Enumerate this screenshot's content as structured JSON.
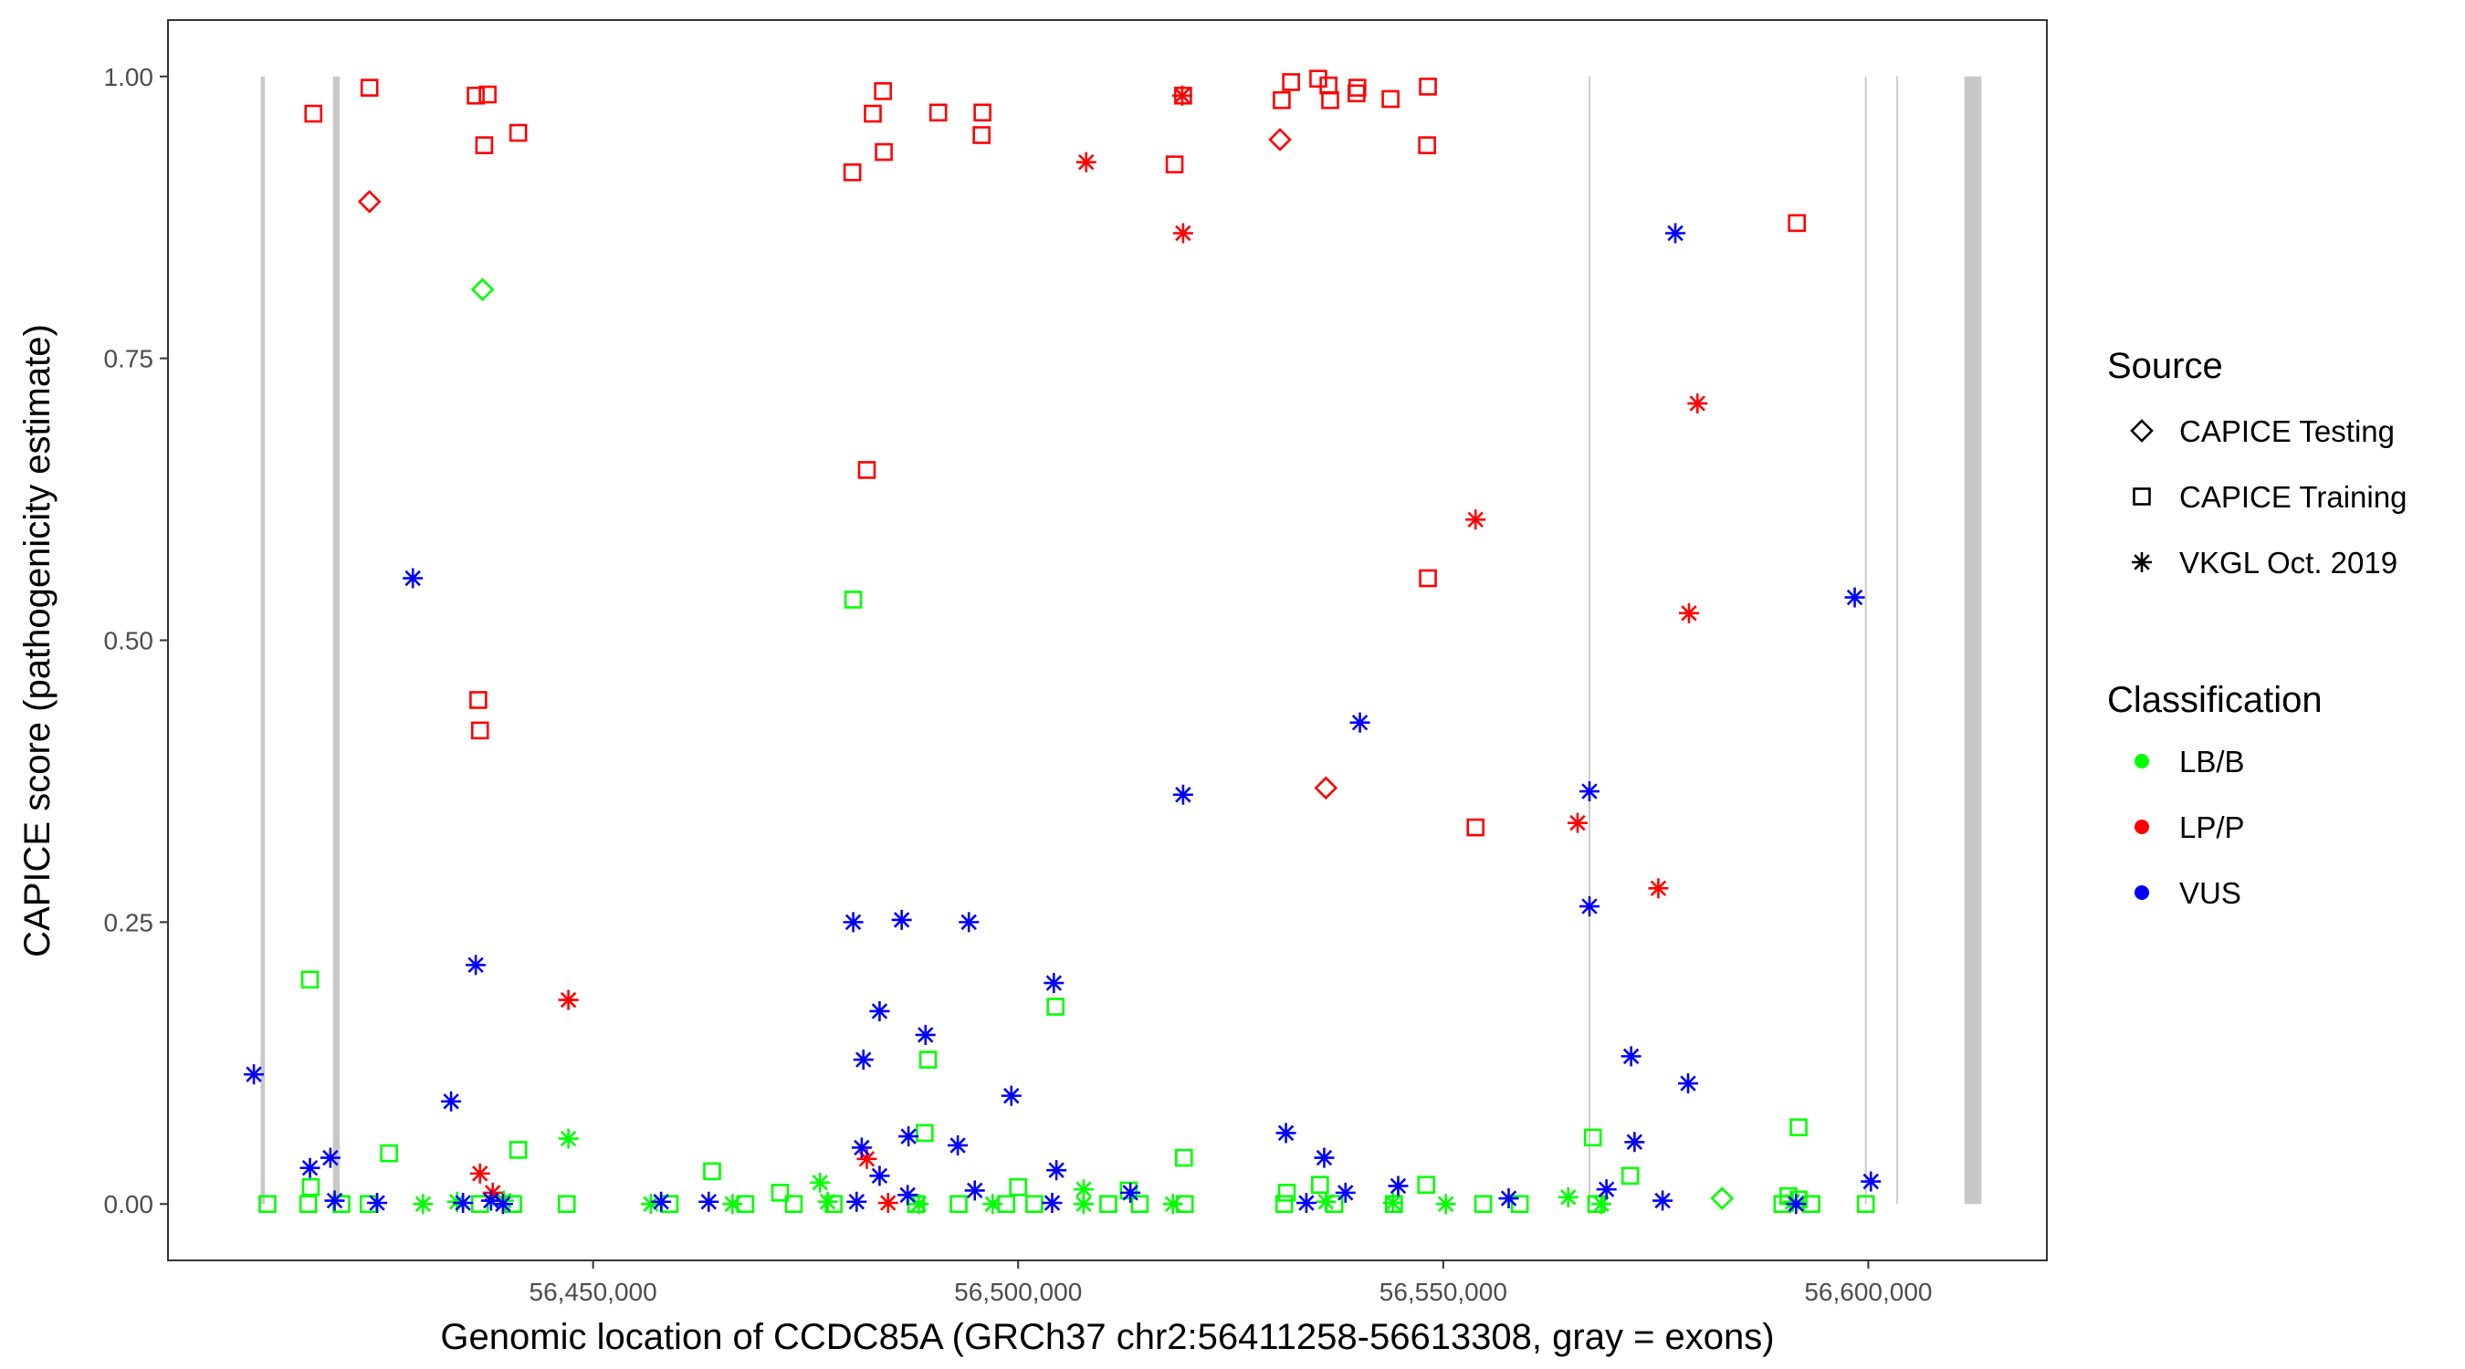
{
  "chart_data": {
    "type": "scatter",
    "title": "",
    "xlabel": "Genomic location of CCDC85A (GRCh37 chr2:56411258-56613308, gray = exons)",
    "ylabel": "CAPICE score (pathogenicity estimate)",
    "xlim": [
      56400000,
      56621000
    ],
    "ylim": [
      -0.05,
      1.05
    ],
    "x_ticks": [
      56450000,
      56500000,
      56550000,
      56600000
    ],
    "x_tick_labels": [
      "56,450,000",
      "56,500,000",
      "56,550,000",
      "56,600,000"
    ],
    "y_ticks": [
      0.0,
      0.25,
      0.5,
      0.75,
      1.0
    ],
    "y_tick_labels": [
      "0.00",
      "0.25",
      "0.50",
      "0.75",
      "1.00"
    ],
    "grid": false,
    "legend_position": "right",
    "exons": [
      {
        "start": 56410900,
        "end": 56411400
      },
      {
        "start": 56419400,
        "end": 56420200
      },
      {
        "start": 56567100,
        "end": 56567300
      },
      {
        "start": 56599600,
        "end": 56599800
      },
      {
        "start": 56603300,
        "end": 56603500
      },
      {
        "start": 56611300,
        "end": 56613308
      }
    ],
    "legend": {
      "source_title": "Source",
      "source_items": [
        {
          "label": "CAPICE Testing",
          "shape": "diamond"
        },
        {
          "label": "CAPICE Training",
          "shape": "square"
        },
        {
          "label": "VKGL Oct. 2019",
          "shape": "asterisk"
        }
      ],
      "class_title": "Classification",
      "class_items": [
        {
          "label": "LB/B",
          "color": "#00ff00"
        },
        {
          "label": "LP/P",
          "color": "#ff0000"
        },
        {
          "label": "VUS",
          "color": "#0000ff"
        }
      ]
    },
    "series": [
      {
        "source": "CAPICE Training",
        "classification": "LP/P",
        "points": [
          [
            56417100,
            0.967
          ],
          [
            56423700,
            0.99
          ],
          [
            56436200,
            0.983
          ],
          [
            56437600,
            0.984
          ],
          [
            56437200,
            0.939
          ],
          [
            56441200,
            0.95
          ],
          [
            56436500,
            0.447
          ],
          [
            56436700,
            0.42
          ],
          [
            56480500,
            0.915
          ],
          [
            56482900,
            0.967
          ],
          [
            56484100,
            0.987
          ],
          [
            56484200,
            0.933
          ],
          [
            56490600,
            0.968
          ],
          [
            56495800,
            0.968
          ],
          [
            56495700,
            0.948
          ],
          [
            56482200,
            0.651
          ],
          [
            56519400,
            0.983
          ],
          [
            56518400,
            0.922
          ],
          [
            56531000,
            0.979
          ],
          [
            56532100,
            0.995
          ],
          [
            56535300,
            0.998
          ],
          [
            56536500,
            0.992
          ],
          [
            56536700,
            0.979
          ],
          [
            56539900,
            0.99
          ],
          [
            56539800,
            0.985
          ],
          [
            56543800,
            0.98
          ],
          [
            56548200,
            0.991
          ],
          [
            56548100,
            0.939
          ],
          [
            56548200,
            0.555
          ],
          [
            56553800,
            0.334
          ],
          [
            56591600,
            0.87
          ]
        ]
      },
      {
        "source": "CAPICE Testing",
        "classification": "LP/P",
        "points": [
          [
            56423700,
            0.889
          ],
          [
            56530800,
            0.944
          ],
          [
            56536200,
            0.369
          ]
        ]
      },
      {
        "source": "VKGL Oct. 2019",
        "classification": "LP/P",
        "points": [
          [
            56508000,
            0.924
          ],
          [
            56519300,
            0.983
          ],
          [
            56519400,
            0.861
          ],
          [
            56553800,
            0.607
          ],
          [
            56579900,
            0.71
          ],
          [
            56578900,
            0.524
          ],
          [
            56565800,
            0.338
          ],
          [
            56575300,
            0.28
          ],
          [
            56447100,
            0.181
          ],
          [
            56436700,
            0.027
          ],
          [
            56438200,
            0.01
          ],
          [
            56482200,
            0.04
          ],
          [
            56484700,
            0.001
          ]
        ]
      },
      {
        "source": "CAPICE Training",
        "classification": "LB/B",
        "points": [
          [
            56416700,
            0.199
          ],
          [
            56480600,
            0.536
          ],
          [
            56504400,
            0.175
          ],
          [
            56489400,
            0.128
          ],
          [
            56489000,
            0.063
          ],
          [
            56426000,
            0.045
          ],
          [
            56441200,
            0.048
          ],
          [
            56464000,
            0.029
          ],
          [
            56519500,
            0.041
          ],
          [
            56567600,
            0.059
          ],
          [
            56572000,
            0.025
          ],
          [
            56591800,
            0.068
          ],
          [
            56535500,
            0.017
          ],
          [
            56548000,
            0.017
          ],
          [
            56500000,
            0.015
          ],
          [
            56513000,
            0.012
          ],
          [
            56531600,
            0.01
          ],
          [
            56472000,
            0.01
          ],
          [
            56416800,
            0.015
          ],
          [
            56411700,
            0.0
          ],
          [
            56416500,
            0.0
          ],
          [
            56420400,
            0.0
          ],
          [
            56423600,
            0.0
          ],
          [
            56436700,
            0.0
          ],
          [
            56440600,
            0.0
          ],
          [
            56446900,
            0.0
          ],
          [
            56459000,
            0.0
          ],
          [
            56467900,
            0.0
          ],
          [
            56473600,
            0.0
          ],
          [
            56478300,
            0.0
          ],
          [
            56488000,
            0.0
          ],
          [
            56493000,
            0.0
          ],
          [
            56498600,
            0.0
          ],
          [
            56501900,
            0.0
          ],
          [
            56510600,
            0.0
          ],
          [
            56514300,
            0.0
          ],
          [
            56519600,
            0.0
          ],
          [
            56531300,
            0.0
          ],
          [
            56537200,
            0.0
          ],
          [
            56544200,
            0.0
          ],
          [
            56554700,
            0.0
          ],
          [
            56559000,
            0.0
          ],
          [
            56568000,
            0.0
          ],
          [
            56589900,
            0.0
          ],
          [
            56590600,
            0.007
          ],
          [
            56591800,
            0.004
          ],
          [
            56593300,
            0.0
          ],
          [
            56599700,
            0.0
          ]
        ]
      },
      {
        "source": "CAPICE Testing",
        "classification": "LB/B",
        "points": [
          [
            56437000,
            0.811
          ],
          [
            56582800,
            0.005
          ]
        ]
      },
      {
        "source": "VKGL Oct. 2019",
        "classification": "LB/B",
        "points": [
          [
            56447100,
            0.058
          ],
          [
            56476700,
            0.019
          ],
          [
            56507700,
            0.013
          ],
          [
            56564700,
            0.006
          ],
          [
            56430000,
            0.0
          ],
          [
            56434000,
            0.002
          ],
          [
            56439500,
            0.003
          ],
          [
            56456800,
            0.0
          ],
          [
            56466400,
            0.0
          ],
          [
            56477600,
            0.002
          ],
          [
            56488300,
            0.0
          ],
          [
            56497000,
            0.0
          ],
          [
            56507700,
            0.0
          ],
          [
            56518200,
            0.0
          ],
          [
            56536200,
            0.002
          ],
          [
            56544100,
            0.001
          ],
          [
            56550300,
            0.0
          ],
          [
            56568600,
            0.0
          ],
          [
            56591100,
            0.002
          ]
        ]
      },
      {
        "source": "VKGL Oct. 2019",
        "classification": "VUS",
        "points": [
          [
            56410100,
            0.115
          ],
          [
            56428800,
            0.555
          ],
          [
            56436200,
            0.212
          ],
          [
            56433300,
            0.091
          ],
          [
            56416700,
            0.032
          ],
          [
            56419100,
            0.041
          ],
          [
            56439400,
            0.0
          ],
          [
            56480600,
            0.25
          ],
          [
            56486300,
            0.252
          ],
          [
            56494200,
            0.25
          ],
          [
            56504200,
            0.196
          ],
          [
            56483700,
            0.171
          ],
          [
            56489100,
            0.15
          ],
          [
            56481800,
            0.128
          ],
          [
            56499200,
            0.096
          ],
          [
            56487100,
            0.06
          ],
          [
            56492900,
            0.052
          ],
          [
            56481600,
            0.05
          ],
          [
            56483700,
            0.025
          ],
          [
            56504500,
            0.03
          ],
          [
            56494900,
            0.012
          ],
          [
            56487000,
            0.008
          ],
          [
            56519400,
            0.363
          ],
          [
            56540200,
            0.427
          ],
          [
            56531500,
            0.063
          ],
          [
            56536000,
            0.041
          ],
          [
            56538500,
            0.01
          ],
          [
            56544700,
            0.016
          ],
          [
            56557700,
            0.005
          ],
          [
            56567200,
            0.366
          ],
          [
            56567200,
            0.264
          ],
          [
            56572100,
            0.131
          ],
          [
            56578800,
            0.107
          ],
          [
            56572500,
            0.055
          ],
          [
            56569200,
            0.013
          ],
          [
            56575800,
            0.003
          ],
          [
            56577300,
            0.861
          ],
          [
            56598400,
            0.538
          ],
          [
            56600300,
            0.02
          ],
          [
            56591500,
            0.0
          ],
          [
            56419600,
            0.003
          ],
          [
            56424600,
            0.001
          ],
          [
            56434700,
            0.001
          ],
          [
            56438000,
            0.003
          ],
          [
            56458000,
            0.002
          ],
          [
            56463600,
            0.002
          ],
          [
            56481000,
            0.002
          ],
          [
            56504000,
            0.001
          ],
          [
            56513200,
            0.01
          ],
          [
            56533900,
            0.001
          ]
        ]
      }
    ]
  }
}
